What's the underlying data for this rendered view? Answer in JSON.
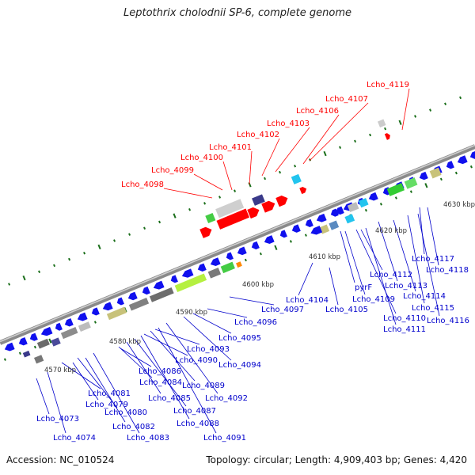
{
  "title": "Leptothrix cholodnii SP-6, complete genome",
  "footer": {
    "accession": "Accession: NC_010524",
    "summary": "Topology: circular; Length: 4,909,403 bp; Genes: 4,420"
  },
  "colors": {
    "forward_label": "#ff0000",
    "reverse_label": "#0000cc",
    "forward_cds": "#ff0000",
    "reverse_cds": "#1010ee",
    "backbone": "#999999",
    "tick": "#1a6e1a"
  },
  "scale_labels": [
    "4570 kbp",
    "4580 kbp",
    "4590 kbp",
    "4600 kbp",
    "4610 kbp",
    "4620 kbp",
    "4630 kbp"
  ],
  "forward_labels": [
    "Lcho_4098",
    "Lcho_4099",
    "Lcho_4100",
    "Lcho_4101",
    "Lcho_4102",
    "Lcho_4103",
    "Lcho_4106",
    "Lcho_4107",
    "Lcho_4119"
  ],
  "reverse_labels": [
    "Lcho_4073",
    "Lcho_4074",
    "Lcho_4079",
    "Lcho_4080",
    "Lcho_4081",
    "Lcho_4082",
    "Lcho_4083",
    "Lcho_4084",
    "Lcho_4085",
    "Lcho_4086",
    "Lcho_4087",
    "Lcho_4088",
    "Lcho_4089",
    "Lcho_4090",
    "Lcho_4091",
    "Lcho_4092",
    "Lcho_4093",
    "Lcho_4094",
    "Lcho_4095",
    "Lcho_4096",
    "Lcho_4097",
    "Lcho_4104",
    "Lcho_4105",
    "pyrF",
    "Lcho_4109",
    "Lcho_4110",
    "Lcho_4111",
    "Lcho_4112",
    "Lcho_4113",
    "Lcho_4114",
    "Lcho_4115",
    "Lcho_4116",
    "Lcho_4117",
    "Lcho_4118"
  ]
}
